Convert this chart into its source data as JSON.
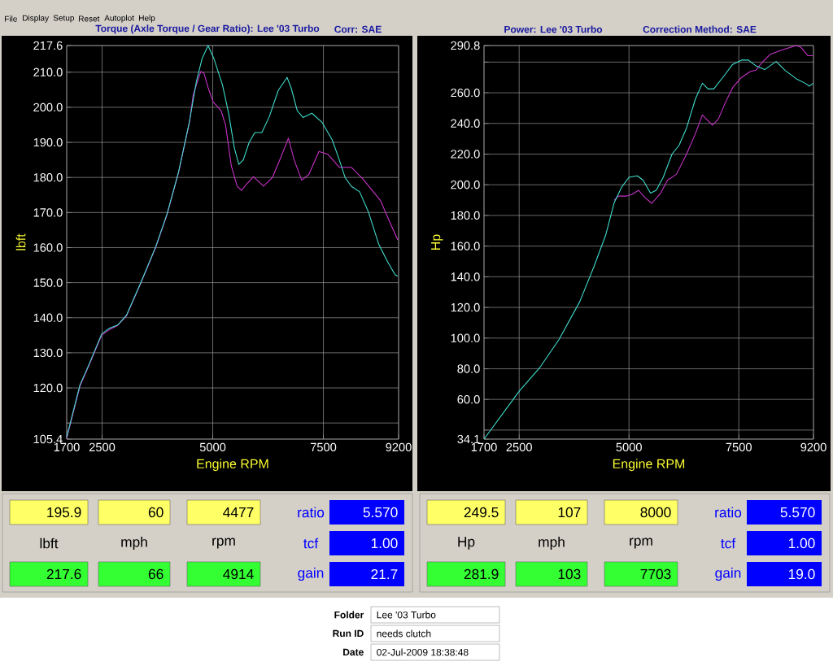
{
  "chart_data": [
    {
      "type": "line",
      "title": "Torque (Axle Torque / Gear Ratio): Lee '03 Turbo",
      "subtitle": "Corr: SAE",
      "xlabel": "Engine RPM",
      "ylabel": "lbft",
      "xlim": [
        1700,
        9200
      ],
      "ylim": [
        105.4,
        217.6
      ],
      "xticks": [
        1700,
        2500,
        5000,
        7500,
        9200
      ],
      "yticks": [
        105.4,
        {
          "value": 110,
          "label": null
        },
        {
          "value": 120,
          "label": "120.0"
        },
        {
          "value": 130,
          "label": "130.0"
        },
        {
          "value": 140,
          "label": "140.0"
        },
        {
          "value": 150,
          "label": "150.0"
        },
        {
          "value": 160,
          "label": "160.0"
        },
        {
          "value": 170,
          "label": "170.0"
        },
        {
          "value": 180,
          "label": "180.0"
        },
        {
          "value": 190,
          "label": "190.0"
        },
        {
          "value": 200,
          "label": "200.0"
        },
        {
          "value": 210,
          "label": "210.0"
        },
        217.6
      ],
      "grid": true,
      "marker": "none",
      "series": [
        {
          "color": "#cc33cc",
          "x": [
            1700,
            2000,
            2190,
            2490,
            2650,
            2850,
            3050,
            3380,
            3710,
            3970,
            4230,
            4470,
            4560,
            4730,
            4800,
            4895,
            5010,
            5190,
            5290,
            5420,
            5550,
            5650,
            5780,
            5920,
            6150,
            6350,
            6540,
            6710,
            6840,
            7010,
            7170,
            7400,
            7600,
            7860,
            8130,
            8390,
            8790,
            8990,
            9180
          ],
          "values": [
            105.6,
            120.5,
            126.0,
            135.0,
            136.5,
            137.8,
            140.5,
            150.0,
            160.0,
            169.5,
            181.5,
            195.5,
            203.6,
            210.2,
            209.8,
            205.6,
            201.5,
            199.0,
            194.9,
            183.3,
            177.5,
            176.3,
            178.3,
            180.2,
            177.5,
            180.0,
            185.8,
            191.2,
            185.0,
            179.2,
            180.8,
            187.4,
            186.6,
            182.9,
            182.9,
            179.6,
            173.4,
            167.6,
            162.2
          ]
        },
        {
          "color": "#40e0d0",
          "x": [
            1700,
            2000,
            2190,
            2490,
            2650,
            2850,
            3050,
            3380,
            3710,
            3970,
            4230,
            4470,
            4630,
            4760,
            4895,
            5025,
            5220,
            5360,
            5490,
            5590,
            5690,
            5820,
            5950,
            6110,
            6280,
            6480,
            6680,
            6770,
            6910,
            7040,
            7240,
            7470,
            7700,
            7860,
            7990,
            8130,
            8320,
            8520,
            8750,
            8950,
            9120,
            9180
          ],
          "values": [
            106.0,
            120.9,
            126.3,
            135.4,
            136.9,
            137.9,
            140.7,
            150.2,
            160.2,
            169.7,
            181.7,
            195.7,
            207.3,
            213.9,
            217.6,
            213.9,
            206.4,
            198.2,
            188.3,
            183.7,
            185.0,
            189.9,
            192.8,
            192.8,
            197.4,
            204.8,
            208.5,
            205.6,
            199.0,
            197.1,
            198.3,
            195.7,
            190.7,
            185.0,
            180.0,
            177.5,
            175.9,
            170.1,
            161.0,
            156.0,
            152.3,
            151.9
          ]
        }
      ],
      "annotations": [
        "File",
        "Display",
        "Setup",
        "Reset",
        "Autoplot",
        "Help",
        "195.9",
        "60",
        "4477",
        "ratio",
        "5.570",
        "lbft",
        "mph",
        "rpm",
        "tcf",
        "1.00",
        "217.6",
        "66",
        "4914",
        "gain",
        "21.7",
        "Folder",
        "Lee '03 Turbo",
        "Run ID",
        "needs clutch",
        "Date",
        "02-Jul-2009  18:38:48"
      ]
    },
    {
      "type": "line",
      "title": "Power: Lee '03 Turbo",
      "subtitle": "Correction Method: SAE",
      "xlabel": "Engine RPM",
      "ylabel": "Hp",
      "xlim": [
        1700,
        9200
      ],
      "ylim": [
        34.1,
        290.8
      ],
      "xticks": [
        1700,
        2500,
        5000,
        7500,
        9200
      ],
      "yticks": [
        34.1,
        {
          "value": 40,
          "label": null
        },
        {
          "value": 60,
          "label": "60.0"
        },
        {
          "value": 80,
          "label": "80.0"
        },
        {
          "value": 100,
          "label": "100.0"
        },
        {
          "value": 120,
          "label": "120.0"
        },
        {
          "value": 140,
          "label": "140.0"
        },
        {
          "value": 160,
          "label": "160.0"
        },
        {
          "value": 180,
          "label": "180.0"
        },
        {
          "value": 200,
          "label": "200.0"
        },
        {
          "value": 220,
          "label": "220.0"
        },
        {
          "value": 240,
          "label": "240.0"
        },
        {
          "value": 260,
          "label": "260.0"
        },
        {
          "value": 280,
          "label": null
        },
        290.8
      ],
      "grid": true,
      "marker": "none",
      "series": [
        {
          "color": "#cc33cc",
          "x": [
            4660,
            4760,
            4930,
            5060,
            5220,
            5360,
            5520,
            5720,
            5880,
            6080,
            6310,
            6510,
            6670,
            6770,
            6900,
            7030,
            7200,
            7360,
            7560,
            7760,
            7890,
            8020,
            8220,
            8480,
            8810,
            8910,
            9070,
            9190
          ],
          "values": [
            189.8,
            192.6,
            192.6,
            193.6,
            196.4,
            191.7,
            187.9,
            194.5,
            203.0,
            206.8,
            220.0,
            233.2,
            245.5,
            242.6,
            238.9,
            242.6,
            254.0,
            263.4,
            270.0,
            273.8,
            274.7,
            279.4,
            285.1,
            287.9,
            290.8,
            289.8,
            284.2,
            284.2
          ]
        },
        {
          "color": "#40e0d0",
          "x": [
            1700,
            2500,
            2960,
            3410,
            3880,
            4200,
            4470,
            4660,
            4830,
            5000,
            5190,
            5320,
            5490,
            5620,
            5780,
            5980,
            6140,
            6310,
            6510,
            6670,
            6800,
            6930,
            7160,
            7360,
            7560,
            7720,
            7890,
            8090,
            8350,
            8550,
            8810,
            9010,
            9110,
            9190
          ],
          "values": [
            34.1,
            65.3,
            80.4,
            99.2,
            123.8,
            146.4,
            167.2,
            188.0,
            198.3,
            204.9,
            205.8,
            203.0,
            194.5,
            196.4,
            204.9,
            220.0,
            225.7,
            237.0,
            255.8,
            266.2,
            262.5,
            262.5,
            270.9,
            278.5,
            281.3,
            281.3,
            277.5,
            275.1,
            280.4,
            274.7,
            269.1,
            266.2,
            264.3,
            266.2
          ]
        }
      ],
      "annotations": [
        "249.5",
        "107",
        "8000",
        "ratio",
        "5.570",
        "Hp",
        "mph",
        "rpm",
        "tcf",
        "1.00",
        "281.9",
        "103",
        "7703",
        "gain",
        "19.0"
      ]
    }
  ]
}
